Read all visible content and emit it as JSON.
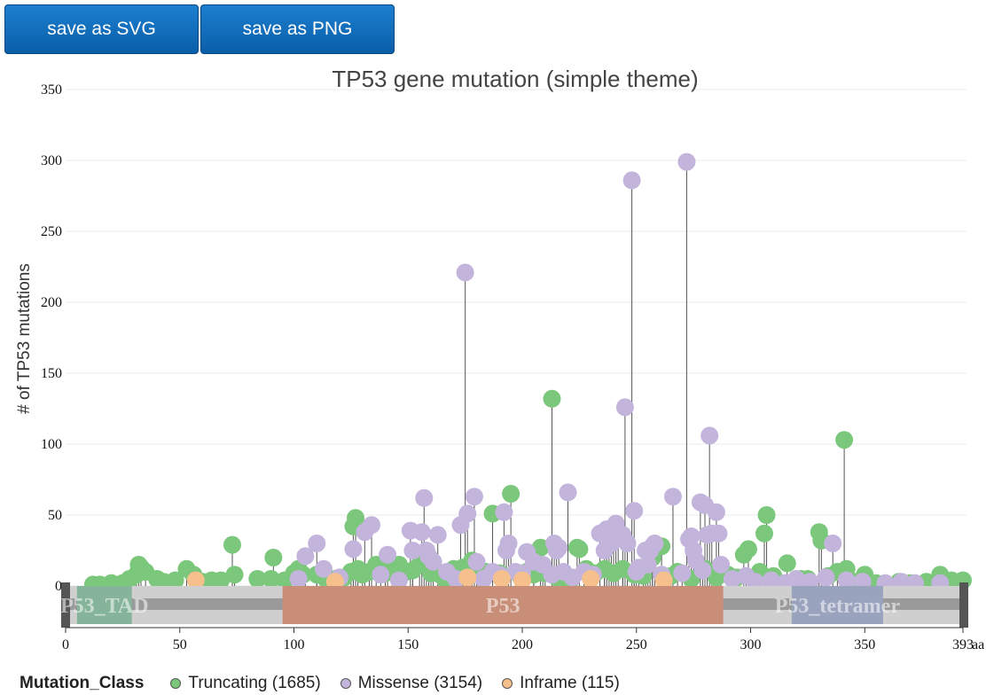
{
  "toolbar": {
    "save_svg_label": "save as SVG",
    "save_png_label": "save as PNG"
  },
  "colors": {
    "truncating": "#7bc77b",
    "missense": "#c3b4dc",
    "inframe": "#f6c08c",
    "domain_tad": "#86b49b",
    "domain_p53": "#c98e78",
    "domain_tetramer": "#9aa3be"
  },
  "chart_data": {
    "type": "lollipop",
    "title": "TP53 gene mutation (simple theme)",
    "ylabel": "# of TP53 mutations",
    "xlabel": "aa",
    "ylim": [
      0,
      350
    ],
    "xlim": [
      0,
      393
    ],
    "y_ticks": [
      "0",
      "50",
      "100",
      "150",
      "200",
      "250",
      "300",
      "350"
    ],
    "x_ticks": [
      "0",
      "50",
      "100",
      "150",
      "200",
      "250",
      "300",
      "350",
      "393"
    ],
    "grid": true,
    "domains": [
      {
        "name": "P53_TAD",
        "start": 5,
        "end": 29
      },
      {
        "name": "P53",
        "start": 95,
        "end": 288
      },
      {
        "name": "P53_tetramer",
        "start": 318,
        "end": 358
      }
    ],
    "legend": {
      "title": "Mutation_Class",
      "items": [
        {
          "label": "Truncating (1685)",
          "class": "truncating"
        },
        {
          "label": "Missense (3154)",
          "class": "missense"
        },
        {
          "label": "Inframe (115)",
          "class": "inframe"
        }
      ]
    },
    "series": [
      {
        "class": "truncating",
        "points": [
          [
            12,
            1
          ],
          [
            15,
            1
          ],
          [
            20,
            2
          ],
          [
            25,
            2
          ],
          [
            28,
            5
          ],
          [
            31,
            8
          ],
          [
            32,
            15
          ],
          [
            33,
            13
          ],
          [
            35,
            10
          ],
          [
            40,
            5
          ],
          [
            43,
            3
          ],
          [
            48,
            4
          ],
          [
            53,
            12
          ],
          [
            56,
            8
          ],
          [
            60,
            3
          ],
          [
            64,
            4
          ],
          [
            68,
            4
          ],
          [
            73,
            29
          ],
          [
            74,
            8
          ],
          [
            84,
            5
          ],
          [
            90,
            5
          ],
          [
            91,
            20
          ],
          [
            96,
            4
          ],
          [
            100,
            9
          ],
          [
            102,
            12
          ],
          [
            104,
            8
          ],
          [
            110,
            8
          ],
          [
            114,
            5
          ],
          [
            118,
            5
          ],
          [
            120,
            6
          ],
          [
            122,
            6
          ],
          [
            125,
            10
          ],
          [
            126,
            42
          ],
          [
            127,
            48
          ],
          [
            128,
            12
          ],
          [
            130,
            8
          ],
          [
            133,
            10
          ],
          [
            136,
            15
          ],
          [
            140,
            9
          ],
          [
            143,
            14
          ],
          [
            146,
            15
          ],
          [
            148,
            9
          ],
          [
            152,
            11
          ],
          [
            155,
            15
          ],
          [
            160,
            9
          ],
          [
            164,
            8
          ],
          [
            166,
            5
          ],
          [
            170,
            12
          ],
          [
            174,
            13
          ],
          [
            178,
            18
          ],
          [
            180,
            12
          ],
          [
            184,
            10
          ],
          [
            187,
            51
          ],
          [
            190,
            9
          ],
          [
            195,
            65
          ],
          [
            199,
            7
          ],
          [
            202,
            10
          ],
          [
            205,
            8
          ],
          [
            208,
            27
          ],
          [
            210,
            9
          ],
          [
            213,
            132
          ],
          [
            215,
            6
          ],
          [
            218,
            3
          ],
          [
            221,
            4
          ],
          [
            224,
            27
          ],
          [
            225,
            26
          ],
          [
            228,
            12
          ],
          [
            232,
            9
          ],
          [
            236,
            12
          ],
          [
            240,
            9
          ],
          [
            244,
            12
          ],
          [
            249,
            8
          ],
          [
            253,
            7
          ],
          [
            257,
            20
          ],
          [
            261,
            28
          ],
          [
            265,
            7
          ],
          [
            268,
            10
          ],
          [
            274,
            5
          ],
          [
            280,
            12
          ],
          [
            285,
            6
          ],
          [
            290,
            8
          ],
          [
            294,
            6
          ],
          [
            297,
            22
          ],
          [
            299,
            26
          ],
          [
            304,
            10
          ],
          [
            306,
            37
          ],
          [
            307,
            50
          ],
          [
            310,
            7
          ],
          [
            316,
            16
          ],
          [
            322,
            5
          ],
          [
            325,
            5
          ],
          [
            330,
            38
          ],
          [
            331,
            32
          ],
          [
            334,
            7
          ],
          [
            338,
            10
          ],
          [
            341,
            103
          ],
          [
            342,
            12
          ],
          [
            346,
            3
          ],
          [
            350,
            8
          ],
          [
            355,
            2
          ],
          [
            365,
            3
          ],
          [
            370,
            2
          ],
          [
            377,
            3
          ],
          [
            383,
            8
          ],
          [
            388,
            4
          ],
          [
            393,
            4
          ]
        ]
      },
      {
        "class": "missense",
        "points": [
          [
            102,
            5
          ],
          [
            105,
            21
          ],
          [
            110,
            30
          ],
          [
            113,
            12
          ],
          [
            120,
            6
          ],
          [
            126,
            26
          ],
          [
            131,
            38
          ],
          [
            134,
            43
          ],
          [
            138,
            8
          ],
          [
            141,
            22
          ],
          [
            146,
            4
          ],
          [
            151,
            39
          ],
          [
            152,
            25
          ],
          [
            156,
            38
          ],
          [
            157,
            62
          ],
          [
            158,
            25
          ],
          [
            159,
            21
          ],
          [
            161,
            17
          ],
          [
            163,
            36
          ],
          [
            167,
            10
          ],
          [
            171,
            5
          ],
          [
            173,
            43
          ],
          [
            175,
            221
          ],
          [
            176,
            51
          ],
          [
            179,
            63
          ],
          [
            180,
            17
          ],
          [
            183,
            5
          ],
          [
            187,
            10
          ],
          [
            190,
            8
          ],
          [
            192,
            52
          ],
          [
            193,
            25
          ],
          [
            194,
            30
          ],
          [
            197,
            10
          ],
          [
            200,
            9
          ],
          [
            202,
            24
          ],
          [
            205,
            17
          ],
          [
            209,
            15
          ],
          [
            213,
            8
          ],
          [
            214,
            30
          ],
          [
            215,
            25
          ],
          [
            216,
            27
          ],
          [
            218,
            10
          ],
          [
            220,
            66
          ],
          [
            222,
            6
          ],
          [
            227,
            10
          ],
          [
            231,
            8
          ],
          [
            234,
            37
          ],
          [
            236,
            25
          ],
          [
            237,
            40
          ],
          [
            238,
            35
          ],
          [
            239,
            30
          ],
          [
            240,
            39
          ],
          [
            241,
            44
          ],
          [
            242,
            35
          ],
          [
            244,
            36
          ],
          [
            245,
            126
          ],
          [
            246,
            30
          ],
          [
            248,
            286
          ],
          [
            249,
            53
          ],
          [
            250,
            10
          ],
          [
            251,
            13
          ],
          [
            254,
            25
          ],
          [
            255,
            15
          ],
          [
            256,
            25
          ],
          [
            257,
            28
          ],
          [
            258,
            30
          ],
          [
            261,
            8
          ],
          [
            266,
            63
          ],
          [
            270,
            9
          ],
          [
            272,
            299
          ],
          [
            273,
            33
          ],
          [
            274,
            35
          ],
          [
            275,
            25
          ],
          [
            276,
            18
          ],
          [
            278,
            59
          ],
          [
            279,
            11
          ],
          [
            280,
            57
          ],
          [
            281,
            36
          ],
          [
            282,
            106
          ],
          [
            283,
            37
          ],
          [
            285,
            52
          ],
          [
            286,
            37
          ],
          [
            287,
            15
          ],
          [
            292,
            5
          ],
          [
            298,
            7
          ],
          [
            302,
            3
          ],
          [
            309,
            4
          ],
          [
            315,
            2
          ],
          [
            320,
            5
          ],
          [
            326,
            3
          ],
          [
            333,
            6
          ],
          [
            336,
            30
          ],
          [
            342,
            4
          ],
          [
            349,
            3
          ],
          [
            359,
            2
          ],
          [
            366,
            3
          ],
          [
            372,
            2
          ],
          [
            383,
            2
          ]
        ]
      },
      {
        "class": "inframe",
        "points": [
          [
            57,
            4
          ],
          [
            118,
            3
          ],
          [
            176,
            6
          ],
          [
            191,
            5
          ],
          [
            200,
            4
          ],
          [
            230,
            5
          ],
          [
            262,
            4
          ]
        ]
      }
    ]
  }
}
